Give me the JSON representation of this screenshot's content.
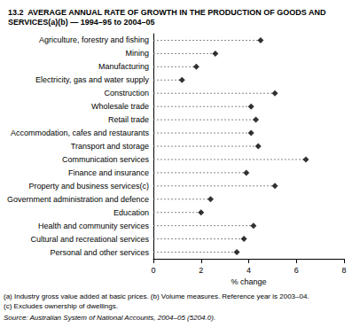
{
  "chart_data": {
    "type": "scatter",
    "orientation": "horizontal",
    "title": "13.2  AVERAGE ANNUAL RATE OF GROWTH IN THE PRODUCTION OF GOODS AND SERVICES(a)(b) — 1994–95 to 2004–05",
    "x_label": "% change",
    "categories": [
      "Agriculture, forestry and fishing",
      "Mining",
      "Manufacturing",
      "Electricity, gas and water supply",
      "Construction",
      "Wholesale trade",
      "Retail trade",
      "Accommodation, cafes and restaurants",
      "Transport and storage",
      "Communication services",
      "Finance and insurance",
      "Property and business services(c)",
      "Government administration and defence",
      "Education",
      "Health and community services",
      "Cultural and recreational services",
      "Personal and other services"
    ],
    "values": [
      4.5,
      2.6,
      1.8,
      1.2,
      5.1,
      4.1,
      4.3,
      4.1,
      4.4,
      6.4,
      3.9,
      5.1,
      2.4,
      2.0,
      4.2,
      3.8,
      3.5
    ],
    "color": "#000000",
    "marker": "diamond",
    "line_style": "dashed",
    "xlim": [
      0,
      8
    ],
    "xticks": [
      0,
      2,
      4,
      6,
      8
    ],
    "grid": false,
    "footnotes": [
      "(a) Industry gross value added at basic prices. (b) Volume measures. Reference year is 2003–04.",
      "(c) Excludes ownership of dwellings."
    ],
    "source": "Source: Australian System of National Accounts, 2004–05 (5204.0)."
  }
}
